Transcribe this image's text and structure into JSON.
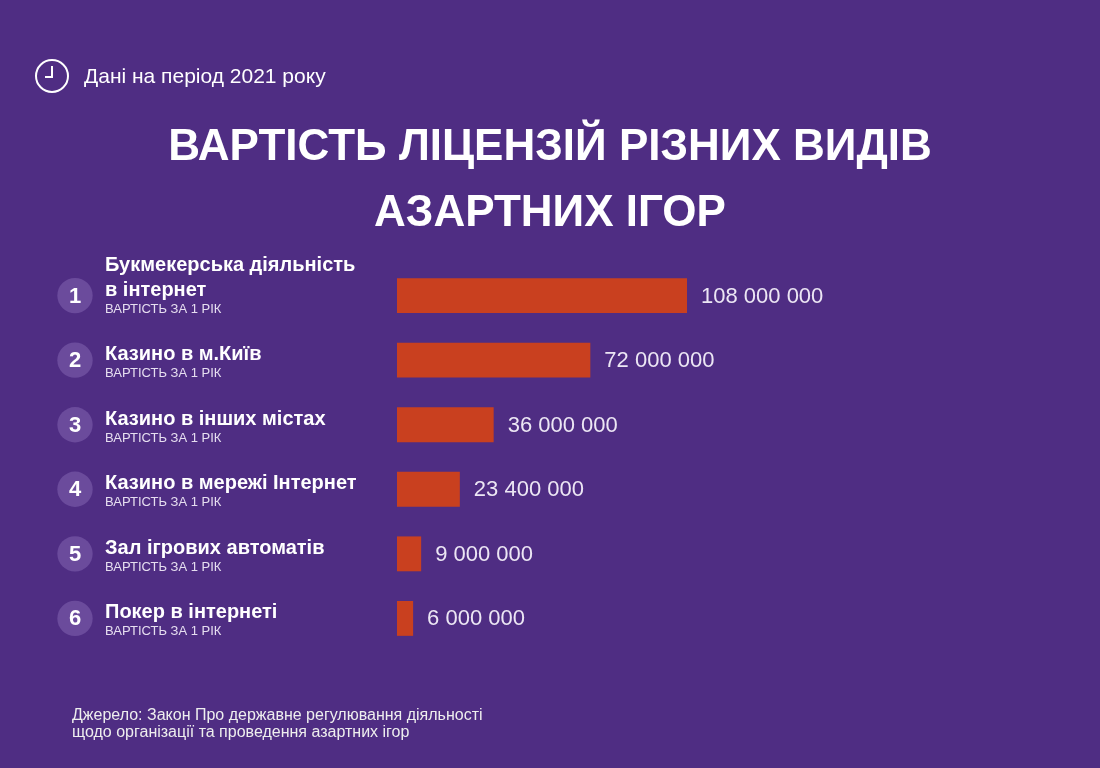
{
  "chart_data": {
    "type": "bar",
    "orientation": "horizontal",
    "title": "ВАРТІСТЬ ЛІЦЕНЗІЙ РІЗНИХ ВИДІВ АЗАРТНИХ ІГОР",
    "subtitle": "Дані на період 2021 року",
    "categories": [
      "Букмекерська діяльність в інтернет",
      "Казино в м.Київ",
      "Казино в інших містах",
      "Казино в мережі Інтернет",
      "Зал ігрових автоматів",
      "Покер в інтернеті"
    ],
    "values": [
      108000000,
      72000000,
      36000000,
      23400000,
      9000000,
      6000000
    ],
    "value_labels": [
      "108 000 000",
      "72 000 000",
      "36 000 000",
      "23 400 000",
      "9 000 000",
      "6 000 000"
    ],
    "color": "#c9401f",
    "annotations": [
      "1",
      "ВАРТІСТЬ ЗА 1 РІК",
      "2",
      "ВАРТІСТЬ ЗА 1 РІК",
      "3",
      "ВАРТІСТЬ ЗА 1 РІК",
      "4",
      "ВАРТІСТЬ ЗА 1 РІК",
      "5",
      "ВАРТІСТЬ ЗА 1 РІК",
      "6",
      "ВАРТІСТЬ ЗА 1 РІК",
      "Джерело: Закон Про державне регулювання діяльності щодо організації та проведення азартних ігор"
    ]
  }
}
